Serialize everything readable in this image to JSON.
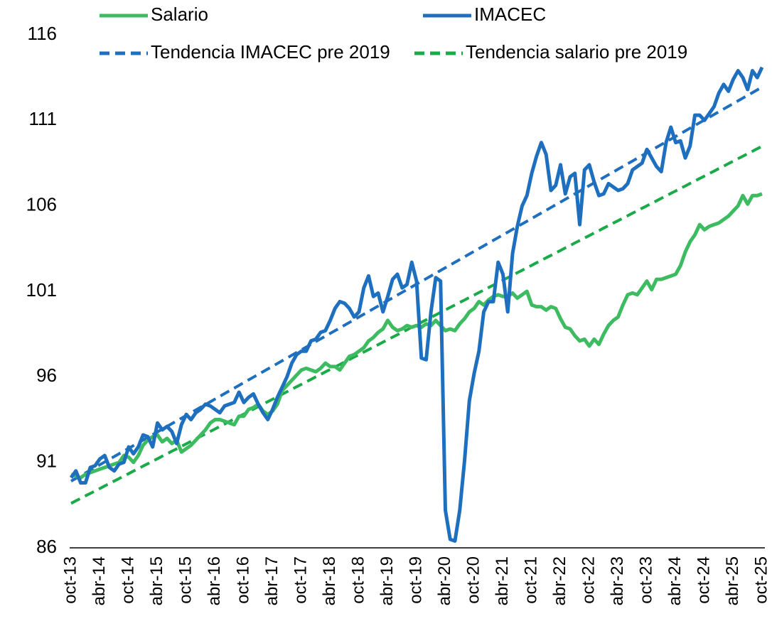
{
  "chart_data": {
    "type": "line",
    "categories": [
      "oct-13",
      null,
      null,
      null,
      null,
      null,
      "abr-14",
      null,
      null,
      null,
      null,
      null,
      "oct-14",
      null,
      null,
      null,
      null,
      null,
      "abr-15",
      null,
      null,
      null,
      null,
      null,
      "oct-15",
      null,
      null,
      null,
      null,
      null,
      "abr-16",
      null,
      null,
      null,
      null,
      null,
      "oct-16",
      null,
      null,
      null,
      null,
      null,
      "abr-17",
      null,
      null,
      null,
      null,
      null,
      "oct-17",
      null,
      null,
      null,
      null,
      null,
      "abr-18",
      null,
      null,
      null,
      null,
      null,
      "oct-18",
      null,
      null,
      null,
      null,
      null,
      "abr-19",
      null,
      null,
      null,
      null,
      null,
      "oct-19",
      null,
      null,
      null,
      null,
      null,
      "abr-20",
      null,
      null,
      null,
      null,
      null,
      "oct-20",
      null,
      null,
      null,
      null,
      null,
      "abr-21",
      null,
      null,
      null,
      null,
      null,
      "oct-21",
      null,
      null,
      null,
      null,
      null,
      "abr-22",
      null,
      null,
      null,
      null,
      null,
      "oct-22",
      null,
      null,
      null,
      null,
      null,
      "abr-23",
      null,
      null,
      null,
      null,
      null,
      "oct-23",
      null,
      null,
      null,
      null,
      null,
      "abr-24",
      null,
      null,
      null,
      null,
      null,
      "oct-24",
      null,
      null,
      null,
      null,
      null,
      "abr-25",
      null,
      null,
      null,
      null,
      null,
      "oct-25"
    ],
    "series": [
      {
        "name": "Salario",
        "color": "#3dbb61",
        "line_style": "solid",
        "values": [
          90.3,
          90.2,
          90.1,
          90.3,
          90.4,
          90.5,
          90.6,
          90.7,
          90.8,
          90.9,
          91.0,
          91.4,
          91.3,
          91.0,
          91.4,
          92.0,
          92.3,
          92.5,
          92.6,
          92.2,
          92.4,
          92.1,
          92.3,
          91.6,
          91.8,
          92.0,
          92.3,
          92.6,
          92.9,
          93.3,
          93.5,
          93.5,
          93.4,
          93.3,
          93.2,
          93.7,
          93.7,
          94.1,
          94.2,
          94.4,
          94.0,
          93.8,
          94.0,
          94.4,
          95.2,
          95.5,
          95.8,
          96.1,
          96.4,
          96.5,
          96.4,
          96.3,
          96.5,
          96.8,
          96.6,
          96.6,
          96.4,
          96.8,
          97.2,
          97.3,
          97.5,
          97.7,
          98.1,
          98.3,
          98.6,
          98.8,
          99.3,
          98.9,
          98.7,
          98.8,
          99.0,
          98.9,
          99.0,
          98.9,
          99.1,
          99.0,
          99.3,
          99.0,
          98.7,
          98.8,
          98.7,
          99.1,
          99.4,
          99.8,
          100.0,
          100.4,
          100.2,
          100.5,
          100.7,
          100.8,
          100.7,
          100.7,
          100.9,
          100.6,
          100.8,
          101.0,
          100.2,
          100.1,
          100.1,
          99.9,
          100.1,
          100.0,
          99.4,
          98.9,
          98.8,
          98.4,
          98.1,
          98.2,
          97.8,
          98.2,
          97.9,
          98.5,
          99.0,
          99.3,
          99.5,
          100.2,
          100.8,
          100.9,
          100.8,
          101.2,
          101.6,
          101.1,
          101.7,
          101.7,
          101.8,
          101.9,
          102.0,
          102.5,
          103.3,
          103.9,
          104.3,
          104.9,
          104.6,
          104.8,
          104.9,
          105.0,
          105.2,
          105.4,
          105.7,
          106.0,
          106.6,
          106.1,
          106.6,
          106.6,
          106.7
        ]
      },
      {
        "name": "IMACEC",
        "color": "#1f6fbf",
        "line_style": "solid",
        "values": [
          90.1,
          90.5,
          89.8,
          89.8,
          90.7,
          90.8,
          91.2,
          91.4,
          90.7,
          90.5,
          90.9,
          91.0,
          91.9,
          91.5,
          91.9,
          92.6,
          92.5,
          91.9,
          93.3,
          92.9,
          93.1,
          92.8,
          92.1,
          93.2,
          93.8,
          93.5,
          93.9,
          94.1,
          94.4,
          94.3,
          94.1,
          93.9,
          94.3,
          94.4,
          94.5,
          95.1,
          94.5,
          94.8,
          95.0,
          94.4,
          93.9,
          93.5,
          94.1,
          94.8,
          95.4,
          96.0,
          96.8,
          97.3,
          97.5,
          97.5,
          98.1,
          98.2,
          98.6,
          98.7,
          99.3,
          100.0,
          100.4,
          100.3,
          100.0,
          99.5,
          99.8,
          101.2,
          101.9,
          100.7,
          100.9,
          99.8,
          100.7,
          101.7,
          102.0,
          101.2,
          101.4,
          102.7,
          101.6,
          97.1,
          97.0,
          99.8,
          101.8,
          101.6,
          88.2,
          86.5,
          86.4,
          88.2,
          91.1,
          94.6,
          96.2,
          97.5,
          99.8,
          100.4,
          100.4,
          102.7,
          102.0,
          99.8,
          103.2,
          104.8,
          106.0,
          106.6,
          107.9,
          108.9,
          109.7,
          109.0,
          106.9,
          107.2,
          108.4,
          106.7,
          107.7,
          107.9,
          104.9,
          108.1,
          108.4,
          107.4,
          106.6,
          106.7,
          107.3,
          107.1,
          106.9,
          107.0,
          107.3,
          108.1,
          108.3,
          108.5,
          109.3,
          108.8,
          108.3,
          108.0,
          109.7,
          110.6,
          109.7,
          109.8,
          108.8,
          109.5,
          111.3,
          111.3,
          111.0,
          111.4,
          111.8,
          112.6,
          113.1,
          112.7,
          113.4,
          113.9,
          113.5,
          112.8,
          113.9,
          113.5,
          114.1
        ]
      },
      {
        "name": "Tendencia IMACEC pre 2019",
        "color": "#1f6fbf",
        "line_style": "dashed",
        "values": [
          89.9,
          90.06,
          90.22,
          90.38,
          90.54,
          90.7,
          90.86,
          91.02,
          91.18,
          91.34,
          91.5,
          91.66,
          91.82,
          91.98,
          92.14,
          92.3,
          92.46,
          92.62,
          92.78,
          92.94,
          93.1,
          93.26,
          93.42,
          93.58,
          93.74,
          93.9,
          94.06,
          94.22,
          94.38,
          94.54,
          94.7,
          94.86,
          95.02,
          95.18,
          95.34,
          95.5,
          95.66,
          95.82,
          95.98,
          96.14,
          96.3,
          96.46,
          96.62,
          96.78,
          96.94,
          97.1,
          97.26,
          97.42,
          97.58,
          97.74,
          97.9,
          98.06,
          98.22,
          98.38,
          98.54,
          98.7,
          98.86,
          99.02,
          99.18,
          99.34,
          99.5,
          99.66,
          99.82,
          99.98,
          100.14,
          100.3,
          100.46,
          100.62,
          100.78,
          100.94,
          101.1,
          101.26,
          101.42,
          101.58,
          101.74,
          101.9,
          102.06,
          102.22,
          102.38,
          102.54,
          102.7,
          102.86,
          103.02,
          103.18,
          103.34,
          103.5,
          103.66,
          103.82,
          103.98,
          104.14,
          104.3,
          104.46,
          104.62,
          104.78,
          104.94,
          105.1,
          105.26,
          105.42,
          105.58,
          105.74,
          105.9,
          106.06,
          106.22,
          106.38,
          106.54,
          106.7,
          106.86,
          107.02,
          107.18,
          107.34,
          107.5,
          107.66,
          107.82,
          107.98,
          108.14,
          108.3,
          108.46,
          108.62,
          108.78,
          108.94,
          109.1,
          109.26,
          109.42,
          109.58,
          109.74,
          109.9,
          110.06,
          110.22,
          110.38,
          110.54,
          110.7,
          110.86,
          111.02,
          111.18,
          111.34,
          111.5,
          111.66,
          111.82,
          111.98,
          112.14,
          112.3,
          112.46,
          112.62,
          112.78,
          112.94
        ]
      },
      {
        "name": "Tendencia salario pre 2019",
        "color": "#1aaa4a",
        "line_style": "dashed",
        "values": [
          88.6,
          88.75,
          88.89,
          89.04,
          89.18,
          89.33,
          89.47,
          89.62,
          89.76,
          89.91,
          90.05,
          90.2,
          90.34,
          90.49,
          90.63,
          90.78,
          90.92,
          91.07,
          91.21,
          91.36,
          91.5,
          91.65,
          91.79,
          91.94,
          92.08,
          92.23,
          92.37,
          92.52,
          92.66,
          92.81,
          92.95,
          93.1,
          93.24,
          93.39,
          93.53,
          93.68,
          93.82,
          93.97,
          94.11,
          94.26,
          94.4,
          94.55,
          94.69,
          94.84,
          94.98,
          95.13,
          95.27,
          95.42,
          95.56,
          95.71,
          95.85,
          96.0,
          96.14,
          96.29,
          96.43,
          96.58,
          96.72,
          96.87,
          97.01,
          97.16,
          97.3,
          97.45,
          97.59,
          97.74,
          97.88,
          98.03,
          98.17,
          98.32,
          98.46,
          98.61,
          98.75,
          98.9,
          99.04,
          99.19,
          99.33,
          99.48,
          99.62,
          99.77,
          99.91,
          100.06,
          100.2,
          100.35,
          100.49,
          100.64,
          100.78,
          100.93,
          101.07,
          101.22,
          101.36,
          101.51,
          101.65,
          101.8,
          101.94,
          102.09,
          102.23,
          102.38,
          102.52,
          102.67,
          102.81,
          102.96,
          103.1,
          103.25,
          103.39,
          103.54,
          103.68,
          103.83,
          103.97,
          104.12,
          104.26,
          104.41,
          104.55,
          104.7,
          104.84,
          104.99,
          105.13,
          105.28,
          105.42,
          105.57,
          105.71,
          105.86,
          106.0,
          106.15,
          106.29,
          106.44,
          106.58,
          106.73,
          106.87,
          107.02,
          107.16,
          107.31,
          107.45,
          107.6,
          107.74,
          107.89,
          108.03,
          108.18,
          108.32,
          108.47,
          108.61,
          108.76,
          108.9,
          109.05,
          109.19,
          109.34,
          109.48
        ]
      }
    ],
    "ylim": [
      86,
      116
    ],
    "yticks": [
      86,
      91,
      96,
      101,
      106,
      111,
      116
    ],
    "grid": false
  }
}
